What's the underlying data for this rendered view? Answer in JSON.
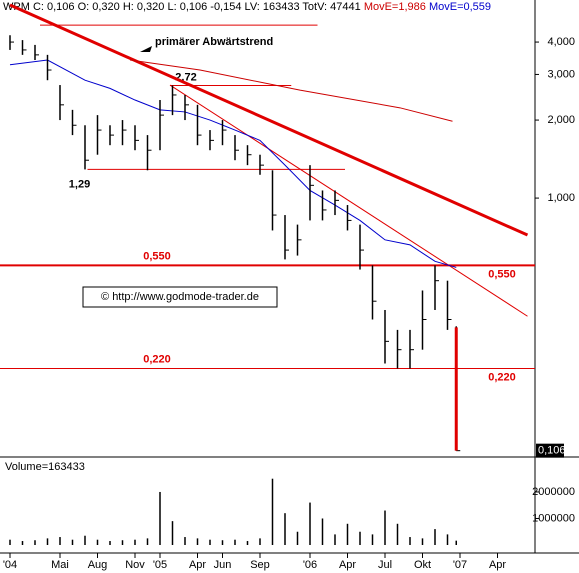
{
  "chart_data": {
    "type": "ohlc",
    "header": {
      "text": "WPM C: 0,106 O: 0,320 H: 0,320 L: 0,106 -0,154 LV: 163433 TotV: 47441",
      "ma_long": "MovE=1,986",
      "ma_short": "MovE=0,559"
    },
    "log_scale": true,
    "xlim": [
      -0.8,
      42
    ],
    "xticks": [
      {
        "value": 0,
        "label": "'04"
      },
      {
        "value": 4,
        "label": "Mai"
      },
      {
        "value": 7,
        "label": "Aug"
      },
      {
        "value": 10,
        "label": "Nov"
      },
      {
        "value": 12,
        "label": "'05"
      },
      {
        "value": 15,
        "label": "Apr"
      },
      {
        "value": 17,
        "label": "Jun"
      },
      {
        "value": 20,
        "label": "Sep"
      },
      {
        "value": 24,
        "label": "'06"
      },
      {
        "value": 27,
        "label": "Apr"
      },
      {
        "value": 30,
        "label": "Jul"
      },
      {
        "value": 33,
        "label": "Okt"
      },
      {
        "value": 36,
        "label": "'07"
      },
      {
        "value": 39,
        "label": "Apr"
      }
    ],
    "ylim": [
      0.102,
      5.56
    ],
    "yticks": [
      {
        "value": 4,
        "label": "4,000"
      },
      {
        "value": 3,
        "label": "3,000"
      },
      {
        "value": 2,
        "label": "2,000"
      },
      {
        "value": 1,
        "label": "1,000"
      }
    ],
    "color": "#000000",
    "x": [
      0,
      1,
      2,
      3,
      4,
      5,
      6,
      7,
      8,
      9,
      10,
      11,
      12,
      13,
      14,
      15,
      16,
      17,
      18,
      19,
      20,
      21,
      22,
      23,
      24,
      25,
      26,
      27,
      28,
      29,
      30,
      31,
      32,
      33,
      34,
      35,
      35.7
    ],
    "high": [
      4.25,
      4.07,
      3.9,
      3.57,
      2.73,
      2.19,
      1.91,
      2.09,
      1.91,
      2.0,
      1.91,
      1.75,
      2.39,
      2.72,
      2.5,
      2.29,
      1.83,
      2.0,
      1.75,
      1.6,
      1.47,
      1.28,
      0.86,
      0.79,
      1.34,
      1.07,
      1.07,
      0.94,
      0.79,
      0.55,
      0.37,
      0.31,
      0.31,
      0.44,
      0.55,
      0.48,
      0.32
    ],
    "low": [
      3.73,
      3.57,
      3.41,
      2.85,
      2.0,
      1.75,
      1.29,
      1.47,
      1.6,
      1.6,
      1.53,
      1.28,
      1.53,
      2.09,
      2.0,
      1.6,
      1.53,
      1.6,
      1.4,
      1.34,
      1.23,
      0.75,
      0.58,
      0.6,
      0.82,
      0.82,
      0.86,
      0.75,
      0.53,
      0.34,
      0.23,
      0.22,
      0.22,
      0.26,
      0.37,
      0.31,
      0.106
    ],
    "close": [
      4.0,
      3.73,
      3.57,
      3.12,
      2.29,
      1.91,
      1.4,
      1.83,
      1.75,
      1.83,
      1.67,
      1.53,
      2.09,
      2.5,
      2.29,
      1.75,
      1.67,
      1.83,
      1.53,
      1.47,
      1.34,
      0.86,
      0.63,
      0.69,
      1.12,
      0.9,
      0.98,
      0.82,
      0.63,
      0.4,
      0.28,
      0.26,
      0.26,
      0.34,
      0.48,
      0.34,
      0.106
    ],
    "ma": [
      {
        "color": "#cc0000",
        "x": [
          9.6,
          15.2,
          23.2,
          31.2,
          35.4
        ],
        "values": [
          3.41,
          3.12,
          2.61,
          2.23,
          1.98
        ]
      },
      {
        "color": "#0000cc",
        "x": [
          0,
          3,
          6,
          8,
          10,
          12,
          14,
          16,
          18,
          20,
          22,
          24,
          26,
          28,
          30,
          32,
          34,
          35.7
        ],
        "values": [
          3.27,
          3.41,
          2.85,
          2.65,
          2.39,
          2.19,
          2.15,
          2.0,
          1.83,
          1.67,
          1.34,
          1.07,
          0.94,
          0.82,
          0.69,
          0.66,
          0.57,
          0.54
        ]
      }
    ],
    "trendlines": [
      {
        "color": "#e00000",
        "x": [
          0,
          41.4
        ],
        "values": [
          5.56,
          0.72
        ]
      },
      {
        "color": "#e00000",
        "x": [
          12.8,
          41.4
        ],
        "values": [
          2.73,
          0.35
        ]
      },
      {
        "color": "#e00000",
        "x": [
          2.4,
          24.6
        ],
        "values": [
          4.65,
          4.65
        ]
      }
    ],
    "levels": [
      {
        "value": 2.72,
        "label": "2,72",
        "x": [
          12.8,
          22.5
        ]
      },
      {
        "value": 1.29,
        "label": "1,29",
        "x": [
          6.2,
          26.8
        ]
      },
      {
        "value": 0.55,
        "label": "0,550"
      },
      {
        "value": 0.22,
        "label": "0,220"
      }
    ],
    "annotation": "primärer Abwärtstrend",
    "watermark": "© http://www.godmode-trader.de",
    "last_price": {
      "value": 0.106,
      "label": "0,106"
    },
    "volume": {
      "title": "Volume=163433",
      "color": "#000000",
      "x": [
        0,
        1,
        2,
        3,
        4,
        5,
        6,
        7,
        8,
        9,
        10,
        11,
        12,
        13,
        14,
        15,
        16,
        17,
        18,
        19,
        20,
        21,
        22,
        23,
        24,
        25,
        26,
        27,
        28,
        29,
        30,
        31,
        32,
        33,
        34,
        35,
        35.7
      ],
      "values": [
        200000,
        150000,
        180000,
        250000,
        300000,
        200000,
        350000,
        200000,
        150000,
        180000,
        200000,
        250000,
        2000000,
        900000,
        300000,
        250000,
        200000,
        180000,
        200000,
        150000,
        250000,
        2500000,
        1200000,
        500000,
        1600000,
        1000000,
        400000,
        800000,
        500000,
        400000,
        1300000,
        800000,
        300000,
        250000,
        600000,
        400000,
        163433
      ],
      "ylim": [
        0,
        3130000
      ],
      "yticks": [
        1000000,
        2000000
      ]
    }
  }
}
